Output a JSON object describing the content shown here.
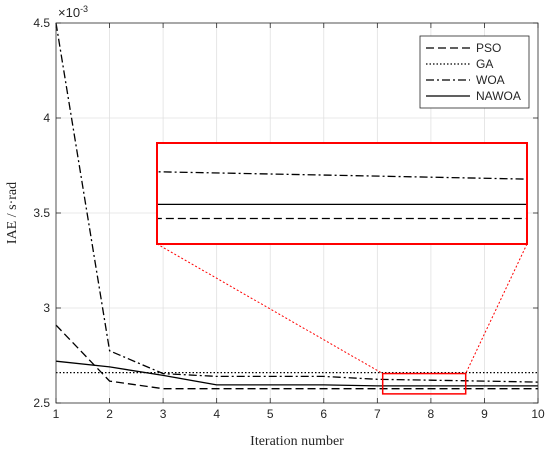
{
  "chart_data": {
    "type": "line",
    "xlabel": "Iteration number",
    "ylabel": "IAE / s·rad",
    "exponent_base": "×10",
    "exponent_power": "-3",
    "xlim": [
      1,
      10
    ],
    "ylim": [
      2.5,
      4.5
    ],
    "xticks": [
      1,
      2,
      3,
      4,
      5,
      6,
      7,
      8,
      9,
      10
    ],
    "yticks": [
      2.5,
      3,
      3.5,
      4,
      4.5
    ],
    "ytick_labels": [
      "2.5",
      "3",
      "3.5",
      "4",
      "4.5"
    ],
    "grid": true,
    "legend_position": "top-right",
    "x": [
      1,
      2,
      3,
      4,
      5,
      6,
      7,
      8,
      9,
      10
    ],
    "series": [
      {
        "name": "PSO",
        "dash": "8,4",
        "values": [
          2.91,
          2.615,
          2.575,
          2.575,
          2.575,
          2.575,
          2.575,
          2.575,
          2.575,
          2.575
        ]
      },
      {
        "name": "GA",
        "dash": "1.5,2",
        "values": [
          2.66,
          2.66,
          2.66,
          2.66,
          2.66,
          2.66,
          2.66,
          2.66,
          2.66,
          2.66
        ]
      },
      {
        "name": "WOA",
        "dash": "8,3,2,3",
        "values": [
          4.5,
          2.775,
          2.655,
          2.64,
          2.64,
          2.64,
          2.625,
          2.62,
          2.615,
          2.61
        ]
      },
      {
        "name": "NAWOA",
        "dash": "",
        "values": [
          2.72,
          2.69,
          2.645,
          2.595,
          2.595,
          2.595,
          2.59,
          2.59,
          2.59,
          2.59
        ]
      }
    ],
    "inset": {
      "x_range": [
        7.1,
        8.65
      ],
      "y_range": [
        2.548,
        2.655
      ],
      "highlight_color": "#ff0000"
    }
  }
}
